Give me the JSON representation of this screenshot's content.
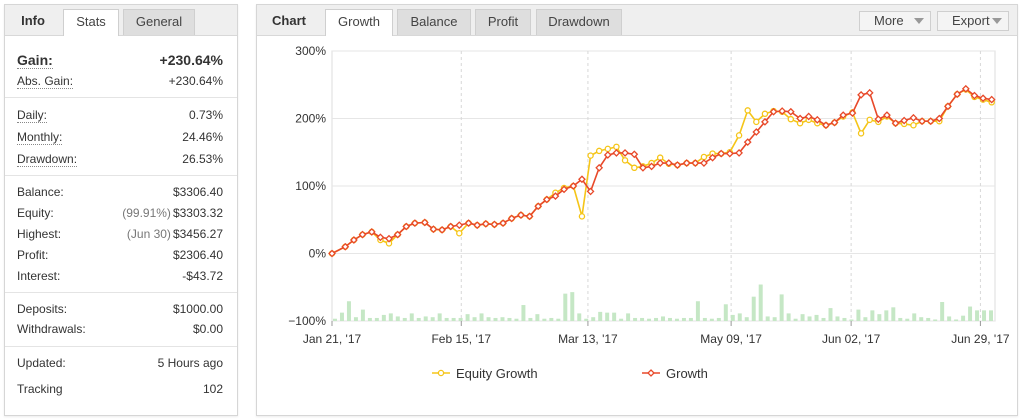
{
  "info_panel": {
    "tabs": [
      {
        "label": "Info"
      },
      {
        "label": "Stats"
      },
      {
        "label": "General"
      }
    ],
    "gain": {
      "label": "Gain:",
      "value": "+230.64%"
    },
    "abs_gain": {
      "label": "Abs. Gain:",
      "value": "+230.64%"
    },
    "daily": {
      "label": "Daily:",
      "value": "0.73%"
    },
    "monthly": {
      "label": "Monthly:",
      "value": "24.46%"
    },
    "drawdown": {
      "label": "Drawdown:",
      "value": "26.53%"
    },
    "balance": {
      "label": "Balance:",
      "value": "$3306.40"
    },
    "equity": {
      "label": "Equity:",
      "note": "(99.91%)",
      "value": "$3303.32"
    },
    "highest": {
      "label": "Highest:",
      "note": "(Jun 30)",
      "value": "$3456.27"
    },
    "profit": {
      "label": "Profit:",
      "value": "$2306.40"
    },
    "interest": {
      "label": "Interest:",
      "value": "-$43.72"
    },
    "deposits": {
      "label": "Deposits:",
      "value": "$1000.00"
    },
    "withdrawals": {
      "label": "Withdrawals:",
      "value": "$0.00"
    },
    "updated": {
      "label": "Updated:",
      "value": "5 Hours ago"
    },
    "tracking": {
      "label": "Tracking",
      "value": "102"
    }
  },
  "chart_panel": {
    "tabs": [
      {
        "label": "Chart"
      },
      {
        "label": "Growth"
      },
      {
        "label": "Balance"
      },
      {
        "label": "Profit"
      },
      {
        "label": "Drawdown"
      }
    ],
    "more_label": "More",
    "export_label": "Export",
    "caret_icon": "chevron-down-icon"
  },
  "chart_data": {
    "type": "line",
    "x_tick_labels": [
      "Jan 21, '17",
      "Feb 15, '17",
      "Mar 13, '17",
      "May 09, '17",
      "Jun 02, '17",
      "Jun 29, '17"
    ],
    "y_tick_labels": [
      "300%",
      "200%",
      "100%",
      "0%",
      "−100%"
    ],
    "ylim": [
      -100,
      300
    ],
    "xlim": [
      0,
      100
    ],
    "grid": true,
    "legend_position": "bottom",
    "series": [
      {
        "name": "Equity Growth",
        "color": "#f5c518",
        "marker": "circle",
        "x": [
          0,
          2,
          3.3,
          4.6,
          6,
          7.3,
          8.6,
          9.9,
          11.2,
          12.5,
          14,
          15.3,
          16.6,
          17.9,
          19.2,
          20.6,
          21.9,
          23.2,
          24.5,
          25.8,
          27.1,
          28.5,
          29.8,
          31.1,
          32.4,
          33.7,
          35,
          36.4,
          37.7,
          39,
          40.3,
          41.6,
          42.9,
          44.2,
          45.6,
          46.9,
          48.2,
          49.5,
          50.8,
          52.1,
          53.5,
          54.8,
          56.1,
          57.4,
          58.7,
          60,
          61.4,
          62.7,
          64,
          65.3,
          66.6,
          67.9,
          69.2,
          70.6,
          71.9,
          73.2,
          74.5,
          75.8,
          77.1,
          78.5,
          79.8,
          81.1,
          82.4,
          83.7,
          85,
          86.3,
          87.7,
          89,
          90.3,
          91.6,
          92.9,
          94.3,
          95.6,
          96.9,
          98.2,
          99.5
        ],
        "y": [
          0,
          10,
          20,
          28,
          32,
          20,
          15,
          28,
          40,
          45,
          46,
          36,
          35,
          40,
          30,
          45,
          42,
          44,
          43,
          45,
          52,
          57,
          55,
          70,
          80,
          90,
          97,
          100,
          55,
          145,
          152,
          155,
          158,
          138,
          127,
          129,
          134,
          142,
          133,
          131,
          134,
          134,
          143,
          148,
          148,
          150,
          175,
          212,
          195,
          207,
          211,
          210,
          199,
          193,
          198,
          193,
          190,
          194,
          203,
          209,
          178,
          198,
          195,
          203,
          193,
          192,
          190,
          196,
          196,
          196,
          218,
          236,
          243,
          232,
          228,
          224
        ],
        "values": [
          0,
          10,
          20,
          28,
          32,
          20,
          15,
          28,
          40,
          45,
          46,
          36,
          35,
          40,
          30,
          45,
          42,
          44,
          43,
          45,
          52,
          57,
          55,
          70,
          80,
          90,
          97,
          100,
          55,
          145,
          152,
          155,
          158,
          138,
          127,
          129,
          134,
          142,
          133,
          131,
          134,
          134,
          143,
          148,
          148,
          150,
          175,
          212,
          195,
          207,
          211,
          210,
          199,
          193,
          198,
          193,
          190,
          194,
          203,
          209,
          178,
          198,
          195,
          203,
          193,
          192,
          190,
          196,
          196,
          196,
          218,
          236,
          243,
          232,
          228,
          224
        ]
      },
      {
        "name": "Growth",
        "color": "#e8492a",
        "marker": "diamond",
        "x": [
          0,
          2,
          3.3,
          4.6,
          6,
          7.3,
          8.6,
          9.9,
          11.2,
          12.5,
          14,
          15.3,
          16.6,
          17.9,
          19.2,
          20.6,
          21.9,
          23.2,
          24.5,
          25.8,
          27.1,
          28.5,
          29.8,
          31.1,
          32.4,
          33.7,
          35,
          36.4,
          37.7,
          39,
          40.3,
          41.6,
          42.9,
          44.2,
          45.6,
          46.9,
          48.2,
          49.5,
          50.8,
          52.1,
          53.5,
          54.8,
          56.1,
          57.4,
          58.7,
          60,
          61.4,
          62.7,
          64,
          65.3,
          66.6,
          67.9,
          69.2,
          70.6,
          71.9,
          73.2,
          74.5,
          75.8,
          77.1,
          78.5,
          79.8,
          81.1,
          82.4,
          83.7,
          85,
          86.3,
          87.7,
          89,
          90.3,
          91.6,
          92.9,
          94.3,
          95.6,
          96.9,
          98.2,
          99.5
        ],
        "y": [
          0,
          10,
          20,
          28,
          32,
          24,
          22,
          28,
          40,
          45,
          46,
          36,
          35,
          40,
          42,
          45,
          42,
          44,
          43,
          45,
          52,
          57,
          55,
          70,
          80,
          85,
          95,
          100,
          110,
          92,
          127,
          146,
          149,
          149,
          147,
          127,
          129,
          134,
          134,
          131,
          134,
          134,
          134,
          142,
          148,
          148,
          149,
          165,
          180,
          195,
          210,
          211,
          210,
          200,
          203,
          198,
          190,
          194,
          205,
          208,
          235,
          238,
          199,
          205,
          193,
          197,
          201,
          196,
          196,
          200,
          218,
          236,
          244,
          234,
          230,
          228
        ],
        "values": [
          0,
          10,
          20,
          28,
          32,
          24,
          22,
          28,
          40,
          45,
          46,
          36,
          35,
          40,
          42,
          45,
          42,
          44,
          43,
          45,
          52,
          57,
          55,
          70,
          80,
          85,
          95,
          100,
          110,
          92,
          127,
          146,
          149,
          149,
          147,
          127,
          129,
          134,
          134,
          131,
          134,
          134,
          134,
          142,
          148,
          148,
          149,
          165,
          180,
          195,
          210,
          211,
          210,
          200,
          203,
          198,
          190,
          194,
          205,
          208,
          235,
          238,
          199,
          205,
          193,
          197,
          201,
          196,
          196,
          200,
          218,
          236,
          244,
          234,
          230,
          228
        ]
      }
    ],
    "volume_bars": {
      "color": "#c5e7c5",
      "values": [
        3,
        11,
        26,
        5,
        15,
        4,
        4,
        8,
        10,
        6,
        4,
        10,
        4,
        6,
        5,
        10,
        4,
        4,
        4,
        9,
        5,
        10,
        5,
        4,
        5,
        4,
        3,
        21,
        4,
        9,
        3,
        4,
        3,
        36,
        38,
        10,
        3,
        5,
        12,
        11,
        11,
        3,
        10,
        4,
        4,
        3,
        4,
        6,
        4,
        3,
        4,
        4,
        26,
        4,
        3,
        4,
        22,
        8,
        10,
        5,
        32,
        48,
        6,
        5,
        35,
        10,
        3,
        9,
        6,
        8,
        4,
        17,
        6,
        4,
        2,
        15,
        5,
        14,
        9,
        14,
        18,
        4,
        3,
        10,
        5,
        4,
        2,
        25,
        6,
        2,
        7,
        19,
        14,
        14,
        14
      ]
    }
  }
}
